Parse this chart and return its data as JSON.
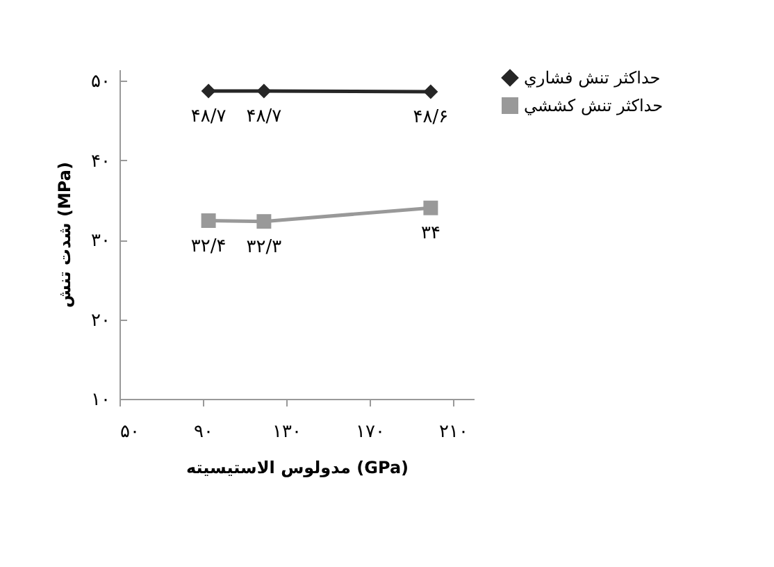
{
  "chart_data": {
    "type": "line",
    "xlabel": "مدولوس الاستیسیته (GPa)",
    "ylabel": "شدت تنش (MPa)",
    "x": [
      92.7,
      119.3,
      199.3
    ],
    "series": [
      {
        "name": "حداکثر تنش فشاري",
        "color": "#262626",
        "marker": "diamond",
        "values": [
          48.7,
          48.7,
          48.6
        ],
        "value_labels": [
          "۴۸/۷",
          "۴۸/۷",
          "۴۸/۶"
        ]
      },
      {
        "name": "حداکثر تنش کششي",
        "color": "#999999",
        "marker": "square",
        "values": [
          32.4,
          32.3,
          34
        ],
        "value_labels": [
          "۳۲/۴",
          "۳۲/۳",
          "۳۴"
        ]
      }
    ],
    "xlim": [
      50,
      220
    ],
    "xticks": [
      {
        "value": 50,
        "label": "۵۰"
      },
      {
        "value": 90,
        "label": "۹۰"
      },
      {
        "value": 130,
        "label": "۱۳۰"
      },
      {
        "value": 170,
        "label": "۱۷۰"
      },
      {
        "value": 210,
        "label": "۲۱۰"
      }
    ],
    "ylim": [
      10,
      51.4
    ],
    "yticks": [
      {
        "value": 10,
        "label": "۱۰"
      },
      {
        "value": 20,
        "label": "۲۰"
      },
      {
        "value": 30,
        "label": "۳۰"
      },
      {
        "value": 40,
        "label": "۴۰"
      },
      {
        "value": 50,
        "label": "۵۰"
      }
    ],
    "grid": false,
    "legend": "right",
    "line_style": "solid"
  }
}
